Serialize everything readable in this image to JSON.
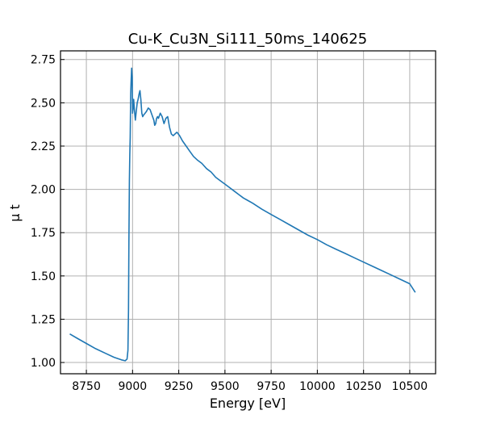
{
  "chart_data": {
    "type": "line",
    "title": "Cu-K_Cu3N_Si111_50ms_140625",
    "xlabel": "Energy [eV]",
    "ylabel": "μ t",
    "xlim": [
      8610,
      10640
    ],
    "ylim": [
      0.935,
      2.8
    ],
    "xticks": [
      8750,
      9000,
      9250,
      9500,
      9750,
      10000,
      10250,
      10500
    ],
    "yticks": [
      1.0,
      1.25,
      1.5,
      1.75,
      2.0,
      2.25,
      2.5,
      2.75
    ],
    "grid": true,
    "line_color": "#1f77b4",
    "series": [
      {
        "x": [
          8660,
          8700,
          8750,
          8800,
          8850,
          8900,
          8940,
          8960,
          8970,
          8975,
          8978,
          8980,
          8983,
          8985,
          8987,
          8990,
          8992,
          8995,
          8998,
          9000,
          9003,
          9006,
          9010,
          9015,
          9020,
          9025,
          9030,
          9035,
          9040,
          9045,
          9050,
          9055,
          9060,
          9068,
          9075,
          9085,
          9095,
          9105,
          9115,
          9120,
          9125,
          9130,
          9135,
          9140,
          9150,
          9160,
          9170,
          9180,
          9190,
          9200,
          9210,
          9220,
          9230,
          9240,
          9255,
          9270,
          9290,
          9310,
          9330,
          9350,
          9375,
          9400,
          9425,
          9450,
          9475,
          9500,
          9525,
          9550,
          9575,
          9600,
          9625,
          9650,
          9700,
          9750,
          9800,
          9850,
          9900,
          9950,
          10000,
          10050,
          10100,
          10150,
          10200,
          10250,
          10300,
          10350,
          10400,
          10450,
          10500,
          10530
        ],
        "y": [
          1.165,
          1.14,
          1.11,
          1.08,
          1.055,
          1.03,
          1.015,
          1.01,
          1.02,
          1.07,
          1.3,
          1.7,
          2.05,
          2.2,
          2.3,
          2.55,
          2.62,
          2.7,
          2.65,
          2.44,
          2.47,
          2.52,
          2.46,
          2.4,
          2.45,
          2.5,
          2.52,
          2.55,
          2.57,
          2.52,
          2.44,
          2.42,
          2.43,
          2.44,
          2.45,
          2.47,
          2.46,
          2.43,
          2.4,
          2.37,
          2.38,
          2.41,
          2.42,
          2.41,
          2.44,
          2.42,
          2.38,
          2.41,
          2.42,
          2.36,
          2.32,
          2.31,
          2.32,
          2.33,
          2.31,
          2.28,
          2.25,
          2.22,
          2.19,
          2.17,
          2.15,
          2.12,
          2.1,
          2.07,
          2.05,
          2.03,
          2.01,
          1.99,
          1.97,
          1.95,
          1.935,
          1.92,
          1.885,
          1.855,
          1.825,
          1.795,
          1.765,
          1.735,
          1.71,
          1.68,
          1.655,
          1.63,
          1.605,
          1.58,
          1.555,
          1.53,
          1.505,
          1.48,
          1.455,
          1.405
        ]
      }
    ]
  }
}
